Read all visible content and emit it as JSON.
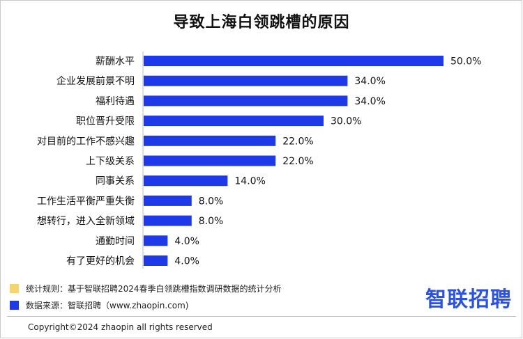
{
  "title": "导致上海白领跳槽的原因",
  "chart_data": {
    "type": "bar",
    "orientation": "horizontal",
    "categories": [
      "薪酬水平",
      "企业发展前景不明",
      "福利待遇",
      "职位晋升受限",
      "对目前的工作不感兴趣",
      "上下级关系",
      "同事关系",
      "工作生活平衡严重失衡",
      "想转行，进入全新领域",
      "通勤时间",
      "有了更好的机会"
    ],
    "values": [
      50.0,
      34.0,
      34.0,
      30.0,
      22.0,
      22.0,
      14.0,
      8.0,
      8.0,
      4.0,
      4.0
    ],
    "value_labels": [
      "50.0%",
      "34.0%",
      "34.0%",
      "30.0%",
      "22.0%",
      "22.0%",
      "14.0%",
      "8.0%",
      "8.0%",
      "4.0%",
      "4.0%"
    ],
    "bar_color": "#1e3ae8",
    "grid": false
  },
  "legend": [
    {
      "text": "统计规则：基于智联招聘2024春季白领跳槽指数调研数据的统计分析",
      "color": "#f5d46e"
    },
    {
      "text": "数据来源：智联招聘（www.zhaopin.com)",
      "color": "#1e3ae8"
    }
  ],
  "brand": "智联招聘",
  "brand_color": "#2b52e6",
  "copyright": "Copyright©2024 zhaopin all rights reserved"
}
